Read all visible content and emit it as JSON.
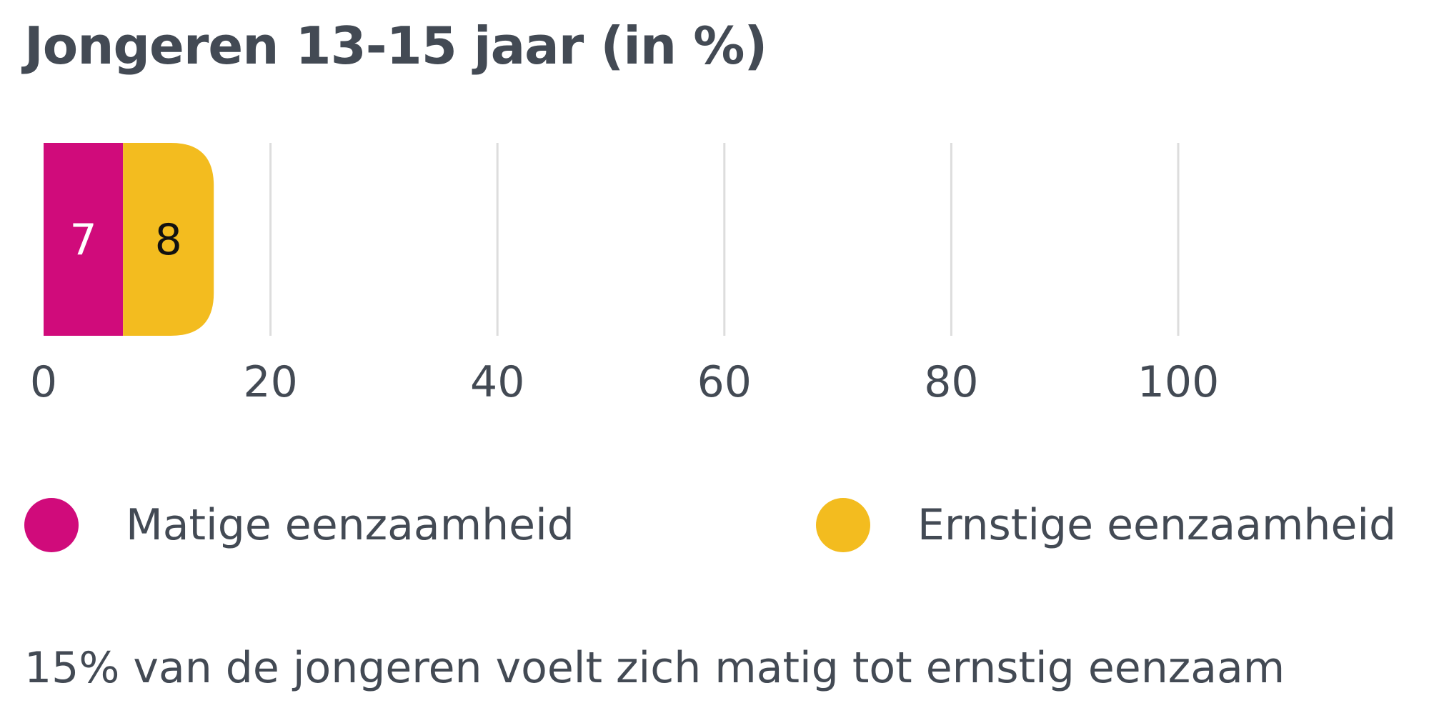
{
  "chart_data": {
    "type": "bar",
    "orientation": "horizontal",
    "stacked": true,
    "title": "Jongeren 13-15 jaar (in %)",
    "categories": [
      ""
    ],
    "series": [
      {
        "name": "Matige eenzaamheid",
        "values": [
          7
        ],
        "color": "#d00b7b",
        "label_color": "#ffffff"
      },
      {
        "name": "Ernstige eenzaamheid",
        "values": [
          8
        ],
        "color": "#f3bc1f",
        "label_color": "#111111"
      }
    ],
    "xlim": [
      0,
      100
    ],
    "xticks": [
      "0",
      "20",
      "40",
      "60",
      "80",
      "100"
    ],
    "grid": true,
    "legend_position": "bottom"
  },
  "footnote": "15% van de jongeren voelt zich matig tot ernstig eenzaam"
}
